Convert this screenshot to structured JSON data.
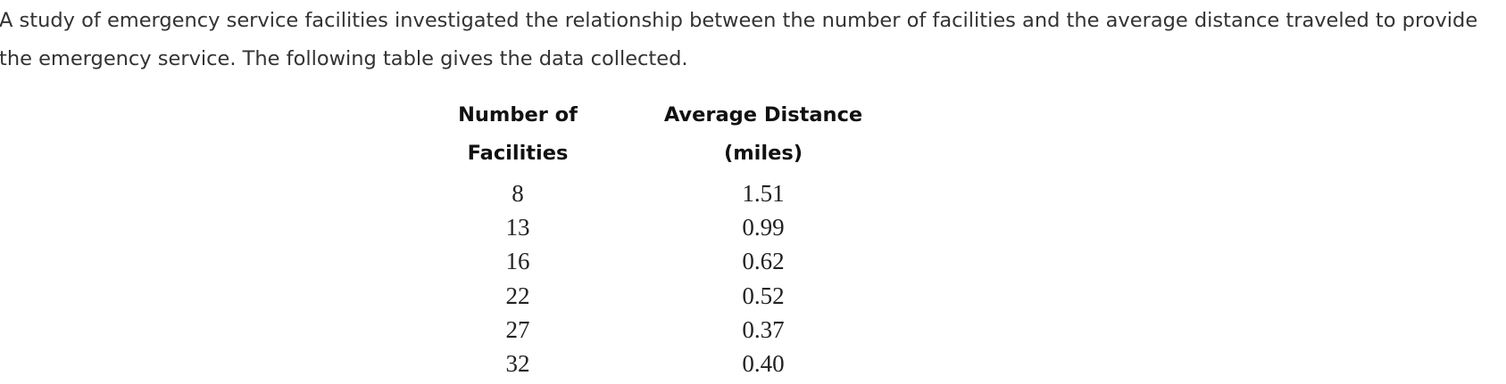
{
  "intro": "A study of emergency service facilities investigated the relationship between the number of facilities and the average distance traveled to provide the emergency service. The following table gives the data collected.",
  "table": {
    "headers": [
      "Number of Facilities",
      "Average Distance (miles)"
    ],
    "rows": [
      [
        "8",
        "1.51"
      ],
      [
        "13",
        "0.99"
      ],
      [
        "16",
        "0.62"
      ],
      [
        "22",
        "0.52"
      ],
      [
        "27",
        "0.37"
      ],
      [
        "32",
        "0.40"
      ]
    ]
  }
}
